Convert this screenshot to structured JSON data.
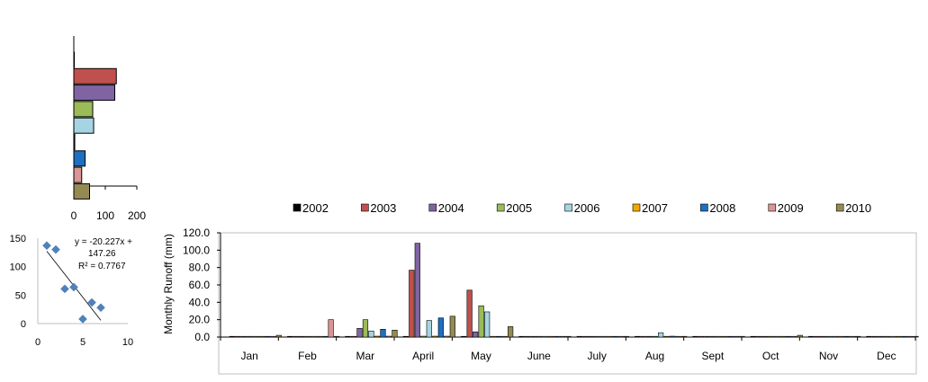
{
  "chart_data": [
    {
      "type": "bar",
      "orientation": "horizontal",
      "categories": [
        "2002",
        "2003",
        "2004",
        "2005",
        "2006",
        "2007",
        "2008",
        "2009",
        "2010"
      ],
      "values": [
        0,
        135,
        130,
        60,
        63,
        3,
        36,
        25,
        50
      ],
      "xlim": [
        0,
        200
      ],
      "xticks": [
        "0",
        "100",
        "200"
      ],
      "grid": false
    },
    {
      "type": "scatter",
      "points": [
        {
          "x": 1,
          "y": 137
        },
        {
          "x": 2,
          "y": 130
        },
        {
          "x": 3,
          "y": 61
        },
        {
          "x": 4,
          "y": 64
        },
        {
          "x": 5,
          "y": 8
        },
        {
          "x": 6,
          "y": 37
        },
        {
          "x": 7,
          "y": 28
        }
      ],
      "trendline": {
        "slope": -20.227,
        "intercept": 147.26,
        "from": 1,
        "to": 7
      },
      "equation_line1": "y = -20.227x +",
      "equation_line2": "147.26",
      "r_squared": "R² = 0.7767",
      "xlim": [
        0,
        10
      ],
      "ylim": [
        0,
        150
      ],
      "xticks": [
        "0",
        "5",
        "10"
      ],
      "yticks": [
        "0",
        "50",
        "100",
        "150"
      ],
      "grid": false
    },
    {
      "type": "bar",
      "ylabel": "Monthly  Runoff (mm)",
      "categories": [
        "Jan",
        "Feb",
        "Mar",
        "April",
        "May",
        "June",
        "July",
        "Aug",
        "Sept",
        "Oct",
        "Nov",
        "Dec"
      ],
      "ylim": [
        0,
        120
      ],
      "yticks": [
        "0.0",
        "20.0",
        "40.0",
        "60.0",
        "80.0",
        "100.0",
        "120.0"
      ],
      "legend_position": "top",
      "grid": false,
      "series": [
        {
          "name": "2002",
          "color": "#000000",
          "values": [
            0.5,
            0.5,
            0.5,
            0.5,
            0.5,
            0.5,
            0.5,
            0.5,
            0.5,
            0.5,
            0.5,
            0.5
          ]
        },
        {
          "name": "2003",
          "color": "#c0504d",
          "values": [
            0.5,
            0.5,
            0.5,
            77,
            54,
            0.5,
            0.5,
            0.5,
            0.5,
            0.5,
            0.5,
            0.5
          ]
        },
        {
          "name": "2004",
          "color": "#8064a2",
          "values": [
            0.5,
            0.5,
            10,
            108,
            6,
            0.5,
            0.5,
            0.5,
            0.5,
            0.5,
            0.5,
            0.5
          ]
        },
        {
          "name": "2005",
          "color": "#9bbb59",
          "values": [
            0.5,
            0.5,
            20,
            1,
            36,
            0.5,
            0.5,
            0.5,
            0.5,
            0.5,
            0.5,
            0.5
          ]
        },
        {
          "name": "2006",
          "color": "#a5d5e2",
          "values": [
            0.5,
            0.5,
            7,
            19,
            29,
            0.5,
            0.5,
            5,
            0.5,
            0.5,
            0.5,
            0.5
          ]
        },
        {
          "name": "2007",
          "color": "#f0a800",
          "values": [
            0.5,
            0.5,
            1,
            1,
            0.5,
            0.5,
            0.5,
            0.5,
            0.5,
            0.5,
            0.5,
            0.5
          ]
        },
        {
          "name": "2008",
          "color": "#1f6fc0",
          "values": [
            0.5,
            0.5,
            9,
            22,
            0.5,
            0.5,
            0.5,
            1,
            0.5,
            0.5,
            0.5,
            0.5
          ]
        },
        {
          "name": "2009",
          "color": "#d99694",
          "values": [
            0.5,
            20,
            1,
            1,
            0.5,
            0.5,
            0.5,
            0.5,
            0.5,
            0.5,
            0.5,
            0.5
          ]
        },
        {
          "name": "2010",
          "color": "#948a54",
          "values": [
            2,
            0.5,
            8,
            24,
            12,
            0.5,
            0.5,
            0.5,
            0.5,
            2,
            0.5,
            0.5
          ]
        }
      ]
    }
  ]
}
